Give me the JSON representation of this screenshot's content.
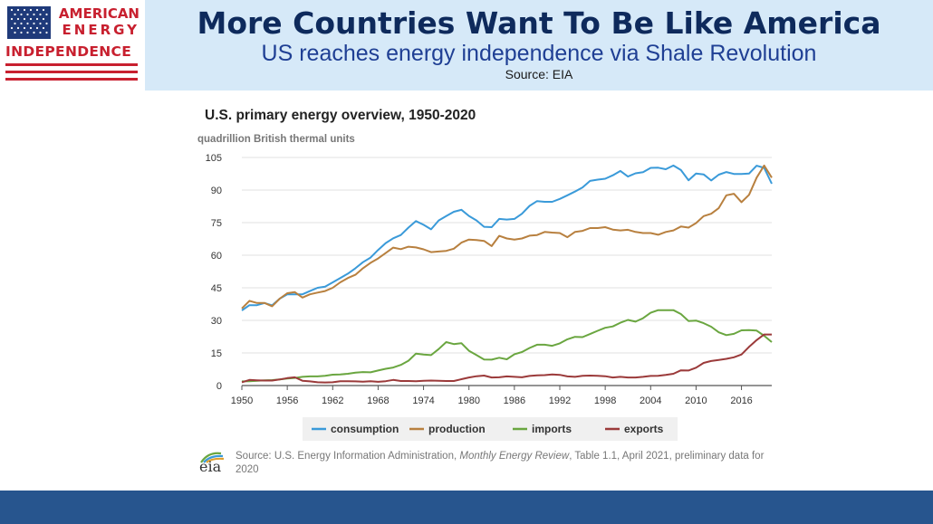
{
  "header": {
    "logo_line1": "AMERICAN",
    "logo_line2": "ENERGY",
    "logo_line3": "INDEPENDENCE",
    "title": "More Countries Want To Be Like America",
    "subtitle": "US reaches energy independence via Shale Revolution",
    "source": "Source: EIA"
  },
  "footer": {
    "eia_logo": "eia",
    "note_prefix": "Source: U.S. Energy Information Administration, ",
    "note_italic": "Monthly Energy Review",
    "note_suffix": ", Table 1.1, April 2021, preliminary data for 2020"
  },
  "colors": {
    "header_bg": "#d6e9f8",
    "title": "#0e2a5c",
    "subtitle": "#1f3f94",
    "logo_red": "#c8202f",
    "footer_bar": "#27558e",
    "consumption": "#3a9ad9",
    "production": "#b8803f",
    "imports": "#6aa640",
    "exports": "#9b3a3a"
  },
  "chart_data": {
    "type": "line",
    "title": "U.S. primary energy overview, 1950-2020",
    "ylabel": "quadrillion British thermal units",
    "xlabel": "",
    "xlim": [
      1950,
      2020
    ],
    "ylim": [
      0,
      105
    ],
    "x_ticks": [
      1950,
      1956,
      1962,
      1968,
      1974,
      1980,
      1986,
      1992,
      1998,
      2004,
      2010,
      2016
    ],
    "y_ticks": [
      0,
      15,
      30,
      45,
      60,
      75,
      90,
      105
    ],
    "grid": true,
    "legend_position": "bottom",
    "series": [
      {
        "name": "consumption",
        "points": [
          [
            1950,
            34.6
          ],
          [
            1951,
            37
          ],
          [
            1952,
            37
          ],
          [
            1953,
            38
          ],
          [
            1954,
            36.9
          ],
          [
            1955,
            40
          ],
          [
            1956,
            42
          ],
          [
            1957,
            42
          ],
          [
            1958,
            42
          ],
          [
            1959,
            43.5
          ],
          [
            1960,
            45
          ],
          [
            1961,
            45.5
          ],
          [
            1962,
            47.5
          ],
          [
            1963,
            49.5
          ],
          [
            1964,
            51.5
          ],
          [
            1965,
            54
          ],
          [
            1966,
            56.8
          ],
          [
            1967,
            58.9
          ],
          [
            1968,
            62.4
          ],
          [
            1969,
            65.6
          ],
          [
            1970,
            67.8
          ],
          [
            1971,
            69.3
          ],
          [
            1972,
            72.7
          ],
          [
            1973,
            75.7
          ],
          [
            1974,
            74
          ],
          [
            1975,
            71.9
          ],
          [
            1976,
            76
          ],
          [
            1977,
            78
          ],
          [
            1978,
            80
          ],
          [
            1979,
            80.9
          ],
          [
            1980,
            78.1
          ],
          [
            1981,
            76
          ],
          [
            1982,
            73.1
          ],
          [
            1983,
            72.9
          ],
          [
            1984,
            76.7
          ],
          [
            1985,
            76.4
          ],
          [
            1986,
            76.7
          ],
          [
            1987,
            79.1
          ],
          [
            1988,
            82.7
          ],
          [
            1989,
            84.9
          ],
          [
            1990,
            84.6
          ],
          [
            1991,
            84.6
          ],
          [
            1992,
            85.9
          ],
          [
            1993,
            87.6
          ],
          [
            1994,
            89.3
          ],
          [
            1995,
            91.2
          ],
          [
            1996,
            94.2
          ],
          [
            1997,
            94.8
          ],
          [
            1998,
            95.2
          ],
          [
            1999,
            96.8
          ],
          [
            2000,
            98.8
          ],
          [
            2001,
            96.2
          ],
          [
            2002,
            97.7
          ],
          [
            2003,
            98.2
          ],
          [
            2004,
            100.2
          ],
          [
            2005,
            100.3
          ],
          [
            2006,
            99.6
          ],
          [
            2007,
            101.3
          ],
          [
            2008,
            99.2
          ],
          [
            2009,
            94.5
          ],
          [
            2010,
            97.6
          ],
          [
            2011,
            97.2
          ],
          [
            2012,
            94.4
          ],
          [
            2013,
            97.1
          ],
          [
            2014,
            98.3
          ],
          [
            2015,
            97.4
          ],
          [
            2016,
            97.4
          ],
          [
            2017,
            97.6
          ],
          [
            2018,
            101.2
          ],
          [
            2019,
            100.2
          ],
          [
            2020,
            92.9
          ]
        ]
      },
      {
        "name": "production",
        "points": [
          [
            1950,
            35.5
          ],
          [
            1951,
            39
          ],
          [
            1952,
            38
          ],
          [
            1953,
            38
          ],
          [
            1954,
            36.5
          ],
          [
            1955,
            40
          ],
          [
            1956,
            42.5
          ],
          [
            1957,
            43
          ],
          [
            1958,
            40.5
          ],
          [
            1959,
            42
          ],
          [
            1960,
            42.8
          ],
          [
            1961,
            43.5
          ],
          [
            1962,
            45
          ],
          [
            1963,
            47.5
          ],
          [
            1964,
            49.5
          ],
          [
            1965,
            51
          ],
          [
            1966,
            54
          ],
          [
            1967,
            56.5
          ],
          [
            1968,
            58.5
          ],
          [
            1969,
            61
          ],
          [
            1970,
            63.5
          ],
          [
            1971,
            62.8
          ],
          [
            1972,
            63.9
          ],
          [
            1973,
            63.6
          ],
          [
            1974,
            62.7
          ],
          [
            1975,
            61.4
          ],
          [
            1976,
            61.7
          ],
          [
            1977,
            62
          ],
          [
            1978,
            63
          ],
          [
            1979,
            65.8
          ],
          [
            1980,
            67.2
          ],
          [
            1981,
            67
          ],
          [
            1982,
            66.6
          ],
          [
            1983,
            64.2
          ],
          [
            1984,
            68.9
          ],
          [
            1985,
            67.7
          ],
          [
            1986,
            67.2
          ],
          [
            1987,
            67.7
          ],
          [
            1988,
            69
          ],
          [
            1989,
            69.3
          ],
          [
            1990,
            70.7
          ],
          [
            1991,
            70.4
          ],
          [
            1992,
            70.2
          ],
          [
            1993,
            68.3
          ],
          [
            1994,
            70.7
          ],
          [
            1995,
            71.2
          ],
          [
            1996,
            72.5
          ],
          [
            1997,
            72.5
          ],
          [
            1998,
            72.9
          ],
          [
            1999,
            71.8
          ],
          [
            2000,
            71.4
          ],
          [
            2001,
            71.7
          ],
          [
            2002,
            70.7
          ],
          [
            2003,
            70.2
          ],
          [
            2004,
            70.2
          ],
          [
            2005,
            69.4
          ],
          [
            2006,
            70.7
          ],
          [
            2007,
            71.4
          ],
          [
            2008,
            73.2
          ],
          [
            2009,
            72.7
          ],
          [
            2010,
            74.8
          ],
          [
            2011,
            78
          ],
          [
            2012,
            79.1
          ],
          [
            2013,
            81.7
          ],
          [
            2014,
            87.6
          ],
          [
            2015,
            88.3
          ],
          [
            2016,
            84.4
          ],
          [
            2017,
            87.8
          ],
          [
            2018,
            95.7
          ],
          [
            2019,
            101.3
          ],
          [
            2020,
            95.7
          ]
        ]
      },
      {
        "name": "imports",
        "points": [
          [
            1950,
            1.9
          ],
          [
            1951,
            2
          ],
          [
            1952,
            2.2
          ],
          [
            1953,
            2.4
          ],
          [
            1954,
            2.5
          ],
          [
            1955,
            2.8
          ],
          [
            1956,
            3.2
          ],
          [
            1957,
            3.5
          ],
          [
            1958,
            4
          ],
          [
            1959,
            4.2
          ],
          [
            1960,
            4.2
          ],
          [
            1961,
            4.5
          ],
          [
            1962,
            5
          ],
          [
            1963,
            5.1
          ],
          [
            1964,
            5.4
          ],
          [
            1965,
            5.9
          ],
          [
            1966,
            6.2
          ],
          [
            1967,
            6.1
          ],
          [
            1968,
            6.9
          ],
          [
            1969,
            7.7
          ],
          [
            1970,
            8.3
          ],
          [
            1971,
            9.5
          ],
          [
            1972,
            11.4
          ],
          [
            1973,
            14.7
          ],
          [
            1974,
            14.3
          ],
          [
            1975,
            14
          ],
          [
            1976,
            16.8
          ],
          [
            1977,
            20
          ],
          [
            1978,
            19.1
          ],
          [
            1979,
            19.5
          ],
          [
            1980,
            16
          ],
          [
            1981,
            14
          ],
          [
            1982,
            12
          ],
          [
            1983,
            11.9
          ],
          [
            1984,
            12.8
          ],
          [
            1985,
            12.1
          ],
          [
            1986,
            14.4
          ],
          [
            1987,
            15.4
          ],
          [
            1988,
            17.3
          ],
          [
            1989,
            18.8
          ],
          [
            1990,
            18.8
          ],
          [
            1991,
            18.3
          ],
          [
            1992,
            19.4
          ],
          [
            1993,
            21.3
          ],
          [
            1994,
            22.4
          ],
          [
            1995,
            22.3
          ],
          [
            1996,
            23.7
          ],
          [
            1997,
            25.2
          ],
          [
            1998,
            26.6
          ],
          [
            1999,
            27.2
          ],
          [
            2000,
            28.9
          ],
          [
            2001,
            30.2
          ],
          [
            2002,
            29.4
          ],
          [
            2003,
            31
          ],
          [
            2004,
            33.5
          ],
          [
            2005,
            34.7
          ],
          [
            2006,
            34.7
          ],
          [
            2007,
            34.7
          ],
          [
            2008,
            32.9
          ],
          [
            2009,
            29.7
          ],
          [
            2010,
            29.9
          ],
          [
            2011,
            28.7
          ],
          [
            2012,
            27.1
          ],
          [
            2013,
            24.5
          ],
          [
            2014,
            23.2
          ],
          [
            2015,
            23.8
          ],
          [
            2016,
            25.4
          ],
          [
            2017,
            25.5
          ],
          [
            2018,
            25.3
          ],
          [
            2019,
            22.9
          ],
          [
            2020,
            20
          ]
        ]
      },
      {
        "name": "exports",
        "points": [
          [
            1950,
            1.5
          ],
          [
            1951,
            2.6
          ],
          [
            1952,
            2.4
          ],
          [
            1953,
            2.3
          ],
          [
            1954,
            2.3
          ],
          [
            1955,
            2.8
          ],
          [
            1956,
            3.4
          ],
          [
            1957,
            3.8
          ],
          [
            1958,
            2.2
          ],
          [
            1959,
            1.9
          ],
          [
            1960,
            1.5
          ],
          [
            1961,
            1.4
          ],
          [
            1962,
            1.5
          ],
          [
            1963,
            2
          ],
          [
            1964,
            2
          ],
          [
            1965,
            1.9
          ],
          [
            1966,
            1.8
          ],
          [
            1967,
            2
          ],
          [
            1968,
            1.7
          ],
          [
            1969,
            2
          ],
          [
            1970,
            2.6
          ],
          [
            1971,
            2.1
          ],
          [
            1972,
            2.1
          ],
          [
            1973,
            2
          ],
          [
            1974,
            2.2
          ],
          [
            1975,
            2.3
          ],
          [
            1976,
            2.2
          ],
          [
            1977,
            2.1
          ],
          [
            1978,
            2.1
          ],
          [
            1979,
            2.9
          ],
          [
            1980,
            3.7
          ],
          [
            1981,
            4.3
          ],
          [
            1982,
            4.6
          ],
          [
            1983,
            3.7
          ],
          [
            1984,
            3.8
          ],
          [
            1985,
            4.2
          ],
          [
            1986,
            4
          ],
          [
            1987,
            3.8
          ],
          [
            1988,
            4.4
          ],
          [
            1989,
            4.7
          ],
          [
            1990,
            4.8
          ],
          [
            1991,
            5.1
          ],
          [
            1992,
            4.9
          ],
          [
            1993,
            4.2
          ],
          [
            1994,
            4
          ],
          [
            1995,
            4.5
          ],
          [
            1996,
            4.6
          ],
          [
            1997,
            4.5
          ],
          [
            1998,
            4.3
          ],
          [
            1999,
            3.7
          ],
          [
            2000,
            4
          ],
          [
            2001,
            3.7
          ],
          [
            2002,
            3.7
          ],
          [
            2003,
            4
          ],
          [
            2004,
            4.4
          ],
          [
            2005,
            4.5
          ],
          [
            2006,
            4.9
          ],
          [
            2007,
            5.4
          ],
          [
            2008,
            7
          ],
          [
            2009,
            6.9
          ],
          [
            2010,
            8.2
          ],
          [
            2011,
            10.4
          ],
          [
            2012,
            11.3
          ],
          [
            2013,
            11.8
          ],
          [
            2014,
            12.3
          ],
          [
            2015,
            13
          ],
          [
            2016,
            14.3
          ],
          [
            2017,
            17.8
          ],
          [
            2018,
            20.9
          ],
          [
            2019,
            23.5
          ],
          [
            2020,
            23.5
          ]
        ]
      }
    ]
  }
}
